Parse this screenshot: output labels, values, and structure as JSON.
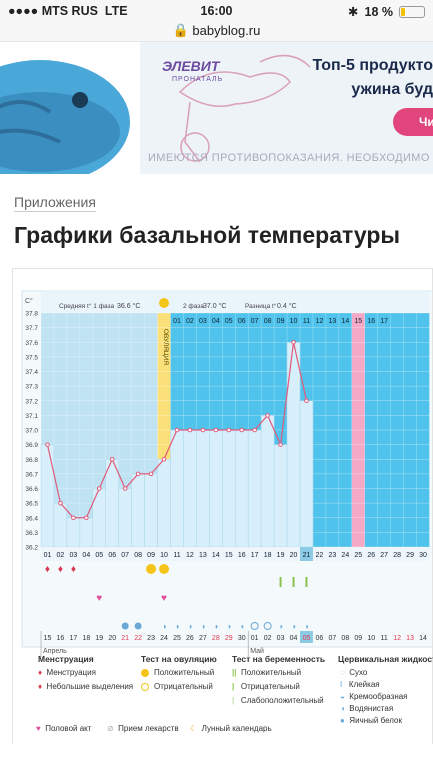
{
  "statusbar": {
    "carrier": "MTS RUS",
    "network": "LTE",
    "time": "16:00",
    "battery": "18 %",
    "battery_level": 0.18
  },
  "browser": {
    "url": "babyblog.ru"
  },
  "ad": {
    "brand": "ЭЛЕВИТ",
    "brand_sub": "ПРОНАТАЛЬ",
    "title_line1": "Топ-5 продукто",
    "title_line2": "ужина буд",
    "button": "Чит",
    "warning": "ИМЕЮТСЯ ПРОТИВОПОКАЗАНИЯ. НЕОБХОДИМО ПРОК"
  },
  "article": {
    "breadcrumb": "Приложения",
    "title": "Графики базальной температуры"
  },
  "chart_header": {
    "unit": "C°",
    "phase1_label": "Средняя t° 1 фаза",
    "phase1_value": "36.6 °C",
    "phase2_label": "2 фаза",
    "phase2_value": "37.0 °C",
    "diff_label": "Разница t°",
    "diff_value": "0.4 °C",
    "ovulation_label": "ОВУЛЯЦИЯ"
  },
  "chart_data": {
    "type": "line",
    "ylim": [
      36.2,
      37.8
    ],
    "yticks": [
      "37.8",
      "37.7",
      "37.6",
      "37.5",
      "37.4",
      "37.3",
      "37.2",
      "37.1",
      "37.0",
      "36.9",
      "36.8",
      "36.7",
      "36.6",
      "36.5",
      "36.4",
      "36.3",
      "36.2"
    ],
    "cycle_days_top": [
      "01",
      "02",
      "03",
      "04",
      "05",
      "06",
      "07",
      "08",
      "09",
      "10",
      "11",
      "12",
      "13",
      "14",
      "15",
      "16",
      "17"
    ],
    "cycle_days_bottom": [
      "01",
      "02",
      "03",
      "04",
      "05",
      "06",
      "07",
      "08",
      "09",
      "10",
      "11",
      "12",
      "13",
      "14",
      "15",
      "16",
      "17",
      "18",
      "19",
      "20",
      "21",
      "22",
      "23",
      "24",
      "25",
      "26",
      "27",
      "28",
      "29",
      "30"
    ],
    "temperatures": [
      36.9,
      36.5,
      36.4,
      36.4,
      36.6,
      36.8,
      36.6,
      36.7,
      36.7,
      36.8,
      37.0,
      37.0,
      37.0,
      37.0,
      37.0,
      37.0,
      37.0,
      37.1,
      36.9,
      37.6,
      37.2
    ],
    "ovulation_day": 10,
    "highlight_day": 25,
    "today_day": 21,
    "dates": [
      "15",
      "16",
      "17",
      "18",
      "19",
      "20",
      "21",
      "22",
      "23",
      "24",
      "25",
      "26",
      "27",
      "28",
      "29",
      "30",
      "01",
      "02",
      "03",
      "04",
      "05",
      "06",
      "07",
      "08",
      "09",
      "10",
      "11",
      "12",
      "13",
      "14"
    ],
    "weekend_dates": [
      "21",
      "22",
      "28",
      "29",
      "05",
      "12",
      "13"
    ],
    "today_date": "05",
    "month_labels": [
      {
        "label": "Апрель",
        "day": 1
      },
      {
        "label": "Май",
        "day": 17
      }
    ]
  },
  "marks": {
    "menstruation_days": [
      1,
      2,
      3
    ],
    "ovulation_test_days": [
      9,
      10
    ],
    "pregnancy_test_days": [
      19,
      20,
      21
    ],
    "intercourse_days": [
      5,
      10
    ],
    "fluid_white_days": [
      7,
      8
    ],
    "fluid_watery_days": [
      10,
      11,
      12,
      13,
      14,
      15,
      16,
      19,
      20,
      21
    ],
    "fluid_dry_days": [
      17,
      18
    ]
  },
  "legend": {
    "col1_title": "Менструация",
    "col1_items": [
      "Менструация",
      "Небольшие выделения"
    ],
    "col2_title": "Тест на овуляцию",
    "col2_items": [
      "Положительный",
      "Отрицательный"
    ],
    "col3_title": "Тест на беременность",
    "col3_items": [
      "Положительный",
      "Отрицательный",
      "Слабоположительный"
    ],
    "col4_title": "Цервикальная жидкость",
    "col4_items": [
      "Сухо",
      "Клейкая",
      "Кремообразная",
      "Водянистая",
      "Яичный белок"
    ],
    "bottom_items": [
      "Половой акт",
      "Прием лекарств",
      "Лунный календарь"
    ]
  },
  "colors": {
    "phase1_bg": "#bfe3f3",
    "phase2_bg": "#4fc3ec",
    "ovulation": "#fbe07a",
    "highlight": "#f4a9c6",
    "line": "#e05a7a",
    "bar": "#d7effa"
  }
}
